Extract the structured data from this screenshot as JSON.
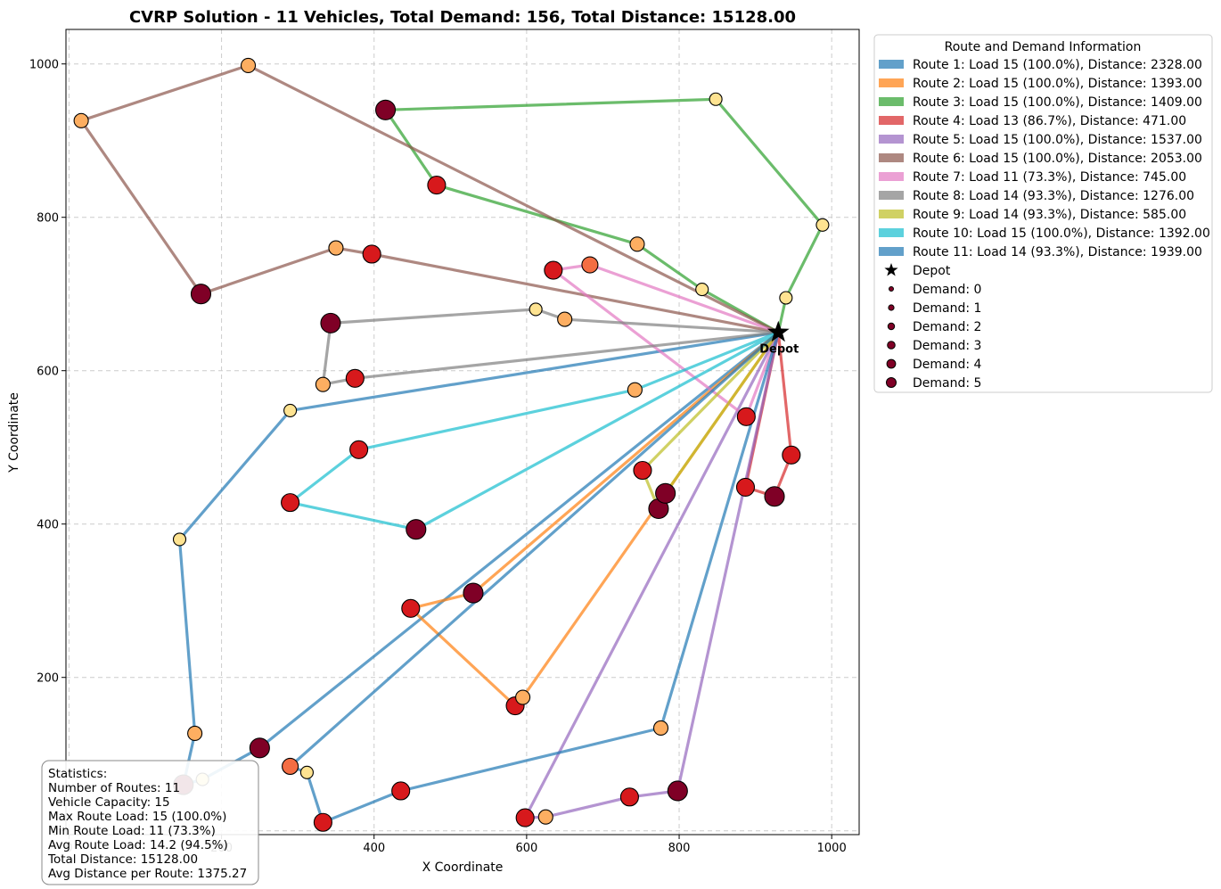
{
  "chart_data": {
    "type": "scatter",
    "title": "CVRP Solution - 11 Vehicles, Total Demand: 156, Total Distance: 15128.00",
    "xlabel": "X Coordinate",
    "ylabel": "Y Coordinate",
    "xlim": [
      -4,
      1036
    ],
    "ylim": [
      -5,
      1045
    ],
    "xticks": [
      0,
      200,
      400,
      600,
      800,
      1000
    ],
    "yticks": [
      0,
      200,
      400,
      600,
      800,
      1000
    ],
    "grid": true,
    "depot": {
      "x": 930,
      "y": 650,
      "label": "Depot"
    },
    "routes": [
      {
        "name": "Route 1: Load 15 (100.0%), Distance: 2328.00",
        "color": "#1f77b4",
        "points": [
          [
            290,
            548
          ],
          [
            145,
            380
          ],
          [
            165,
            127
          ],
          [
            150,
            60
          ],
          [
            175,
            67
          ],
          [
            250,
            108
          ]
        ]
      },
      {
        "name": "Route 2: Load 15 (100.0%), Distance: 1393.00",
        "color": "#ff7f0e",
        "points": [
          [
            530,
            310
          ],
          [
            448,
            290
          ],
          [
            585,
            163
          ],
          [
            595,
            174
          ]
        ]
      },
      {
        "name": "Route 3: Load 15 (100.0%), Distance: 1409.00",
        "color": "#2ca02c",
        "points": [
          [
            830,
            706
          ],
          [
            745,
            765
          ],
          [
            482,
            842
          ],
          [
            415,
            940
          ],
          [
            848,
            954
          ],
          [
            988,
            790
          ],
          [
            940,
            695
          ]
        ]
      },
      {
        "name": "Route 4: Load 13 (86.7%), Distance: 471.00",
        "color": "#d62728",
        "points": [
          [
            947,
            490
          ],
          [
            925,
            436
          ],
          [
            887,
            448
          ]
        ]
      },
      {
        "name": "Route 5: Load 15 (100.0%), Distance: 1537.00",
        "color": "#9467bd",
        "points": [
          [
            798,
            52
          ],
          [
            735,
            44
          ],
          [
            625,
            18
          ],
          [
            598,
            17
          ]
        ]
      },
      {
        "name": "Route 6: Load 15 (100.0%), Distance: 2053.00",
        "color": "#8c564b",
        "points": [
          [
            397,
            752
          ],
          [
            350,
            760
          ],
          [
            173,
            700
          ],
          [
            16,
            926
          ],
          [
            235,
            998
          ]
        ]
      },
      {
        "name": "Route 7: Load 11 (73.3%), Distance: 745.00",
        "color": "#e377c2",
        "points": [
          [
            888,
            540
          ],
          [
            635,
            731
          ],
          [
            683,
            738
          ]
        ]
      },
      {
        "name": "Route 8: Load 14 (93.3%), Distance: 1276.00",
        "color": "#7f7f7f",
        "points": [
          [
            650,
            667
          ],
          [
            612,
            680
          ],
          [
            343,
            662
          ],
          [
            333,
            582
          ],
          [
            375,
            590
          ]
        ]
      },
      {
        "name": "Route 9: Load 14 (93.3%), Distance: 585.00",
        "color": "#bcbd22",
        "points": [
          [
            752,
            470
          ],
          [
            773,
            420
          ],
          [
            782,
            440
          ]
        ]
      },
      {
        "name": "Route 10: Load 15 (100.0%), Distance: 1392.00",
        "color": "#17becf",
        "points": [
          [
            455,
            393
          ],
          [
            290,
            428
          ],
          [
            380,
            497
          ],
          [
            742,
            575
          ]
        ]
      },
      {
        "name": "Route 11: Load 14 (93.3%), Distance: 1939.00",
        "color": "#1f77b4",
        "points": [
          [
            290,
            84
          ],
          [
            312,
            76
          ],
          [
            333,
            11
          ],
          [
            435,
            52
          ],
          [
            776,
            134
          ]
        ]
      }
    ],
    "customers": [
      {
        "x": 290,
        "y": 548,
        "d": 1
      },
      {
        "x": 145,
        "y": 380,
        "d": 1
      },
      {
        "x": 165,
        "y": 127,
        "d": 2
      },
      {
        "x": 150,
        "y": 60,
        "d": 5
      },
      {
        "x": 175,
        "y": 67,
        "d": 1
      },
      {
        "x": 250,
        "y": 108,
        "d": 5
      },
      {
        "x": 530,
        "y": 310,
        "d": 5
      },
      {
        "x": 448,
        "y": 290,
        "d": 4
      },
      {
        "x": 585,
        "y": 163,
        "d": 4
      },
      {
        "x": 595,
        "y": 174,
        "d": 2
      },
      {
        "x": 830,
        "y": 706,
        "d": 1
      },
      {
        "x": 745,
        "y": 765,
        "d": 2
      },
      {
        "x": 482,
        "y": 842,
        "d": 4
      },
      {
        "x": 415,
        "y": 940,
        "d": 5
      },
      {
        "x": 848,
        "y": 954,
        "d": 1
      },
      {
        "x": 988,
        "y": 790,
        "d": 1
      },
      {
        "x": 940,
        "y": 695,
        "d": 1
      },
      {
        "x": 947,
        "y": 490,
        "d": 4
      },
      {
        "x": 925,
        "y": 436,
        "d": 5
      },
      {
        "x": 887,
        "y": 448,
        "d": 4
      },
      {
        "x": 798,
        "y": 52,
        "d": 5
      },
      {
        "x": 735,
        "y": 44,
        "d": 4
      },
      {
        "x": 625,
        "y": 18,
        "d": 2
      },
      {
        "x": 598,
        "y": 17,
        "d": 4
      },
      {
        "x": 397,
        "y": 752,
        "d": 4
      },
      {
        "x": 350,
        "y": 760,
        "d": 2
      },
      {
        "x": 173,
        "y": 700,
        "d": 5
      },
      {
        "x": 16,
        "y": 926,
        "d": 2
      },
      {
        "x": 235,
        "y": 998,
        "d": 2
      },
      {
        "x": 888,
        "y": 540,
        "d": 4
      },
      {
        "x": 635,
        "y": 731,
        "d": 4
      },
      {
        "x": 683,
        "y": 738,
        "d": 3
      },
      {
        "x": 650,
        "y": 667,
        "d": 2
      },
      {
        "x": 612,
        "y": 680,
        "d": 1
      },
      {
        "x": 343,
        "y": 662,
        "d": 5
      },
      {
        "x": 333,
        "y": 582,
        "d": 2
      },
      {
        "x": 375,
        "y": 590,
        "d": 4
      },
      {
        "x": 752,
        "y": 470,
        "d": 4
      },
      {
        "x": 773,
        "y": 420,
        "d": 5
      },
      {
        "x": 782,
        "y": 440,
        "d": 5
      },
      {
        "x": 455,
        "y": 393,
        "d": 5
      },
      {
        "x": 290,
        "y": 428,
        "d": 4
      },
      {
        "x": 380,
        "y": 497,
        "d": 4
      },
      {
        "x": 742,
        "y": 575,
        "d": 2
      },
      {
        "x": 290,
        "y": 84,
        "d": 3
      },
      {
        "x": 312,
        "y": 76,
        "d": 1
      },
      {
        "x": 333,
        "y": 11,
        "d": 4
      },
      {
        "x": 435,
        "y": 52,
        "d": 4
      },
      {
        "x": 776,
        "y": 134,
        "d": 2
      }
    ],
    "legend": {
      "title": "Route and Demand Information",
      "depot_label": "Depot",
      "demand_labels": [
        "Demand: 0",
        "Demand: 1",
        "Demand: 2",
        "Demand: 3",
        "Demand: 4",
        "Demand: 5"
      ]
    },
    "stats_lines": [
      "Statistics:",
      "Number of Routes: 11",
      "Vehicle Capacity: 15",
      "Max Route Load: 15 (100.0%)",
      "Min Route Load: 11 (73.3%)",
      "Avg Route Load: 14.2 (94.5%)",
      "Total Distance: 15128.00",
      "Avg Distance per Route: 1375.27"
    ]
  }
}
